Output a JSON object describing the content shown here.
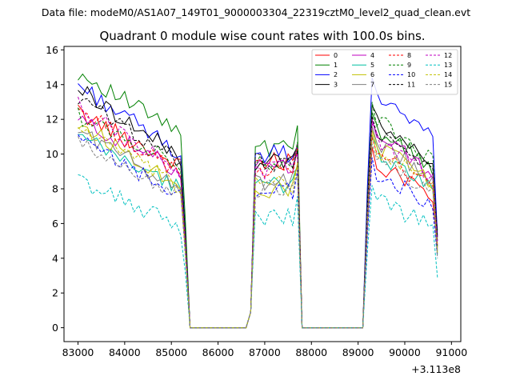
{
  "figure": {
    "suptitle": "Data file: modeM0/AS1A07_149T01_9000003304_22319cztM0_level2_quad_clean.evt"
  },
  "chart_data": {
    "type": "line",
    "title": "Quadrant 0 module wise count rates with 100.0s bins.",
    "xlabel": "",
    "ylabel": "",
    "x_offset_label": "+3.113e8",
    "xlim": [
      82700,
      91200
    ],
    "ylim": [
      -0.8,
      16.2
    ],
    "xticks": [
      83000,
      84000,
      85000,
      86000,
      87000,
      88000,
      89000,
      90000,
      91000
    ],
    "xtick_labels": [
      "83000",
      "84000",
      "85000",
      "86000",
      "87000",
      "88000",
      "89000",
      "90000",
      "91000"
    ],
    "yticks": [
      0,
      2,
      4,
      6,
      8,
      10,
      12,
      14,
      16
    ],
    "ytick_labels": [
      "0",
      "2",
      "4",
      "6",
      "8",
      "10",
      "12",
      "14",
      "16"
    ],
    "legend_position": "top-right",
    "segments": [
      {
        "start": 83000,
        "end": 85400,
        "bins": 25
      },
      {
        "start": 85500,
        "end": 86600,
        "gap": true
      },
      {
        "start": 86700,
        "end": 87800,
        "bins": 12
      },
      {
        "start": 87900,
        "end": 89100,
        "gap": true
      },
      {
        "start": 89200,
        "end": 90700,
        "bins": 16
      }
    ],
    "series": [
      {
        "name": "0",
        "color": "#ff0000",
        "dash": false,
        "levels": [
          12.4,
          9.3,
          9.6,
          9.6,
          4.7
        ]
      },
      {
        "name": "1",
        "color": "#008000",
        "dash": false,
        "levels": [
          14.7,
          11.2,
          10.4,
          11.6,
          5.6
        ]
      },
      {
        "name": "2",
        "color": "#0000ff",
        "dash": false,
        "levels": [
          14.0,
          10.0,
          10.0,
          13.6,
          5.3
        ]
      },
      {
        "name": "3",
        "color": "#000000",
        "dash": false,
        "levels": [
          13.8,
          9.8,
          9.6,
          12.0,
          5.2
        ]
      },
      {
        "name": "4",
        "color": "#c000c0",
        "dash": false,
        "levels": [
          12.0,
          9.0,
          9.2,
          11.2,
          4.6
        ]
      },
      {
        "name": "5",
        "color": "#00c0a0",
        "dash": false,
        "levels": [
          11.0,
          8.0,
          8.2,
          10.2,
          4.2
        ]
      },
      {
        "name": "6",
        "color": "#c0c000",
        "dash": false,
        "levels": [
          11.8,
          8.2,
          8.0,
          10.6,
          4.5
        ]
      },
      {
        "name": "7",
        "color": "#808080",
        "dash": false,
        "levels": [
          11.4,
          8.0,
          8.4,
          10.8,
          4.4
        ]
      },
      {
        "name": "8",
        "color": "#ff0000",
        "dash": true,
        "levels": [
          12.6,
          8.8,
          9.0,
          10.2,
          4.7
        ]
      },
      {
        "name": "9",
        "color": "#008000",
        "dash": true,
        "levels": [
          12.2,
          9.4,
          9.4,
          12.2,
          4.6
        ]
      },
      {
        "name": "10",
        "color": "#0000ff",
        "dash": true,
        "levels": [
          10.8,
          7.6,
          7.8,
          9.0,
          4.1
        ]
      },
      {
        "name": "11",
        "color": "#000000",
        "dash": true,
        "levels": [
          13.2,
          9.6,
          9.5,
          11.4,
          5.0
        ]
      },
      {
        "name": "12",
        "color": "#c000c0",
        "dash": true,
        "levels": [
          12.8,
          9.0,
          9.1,
          11.0,
          4.8
        ]
      },
      {
        "name": "13",
        "color": "#00c0c0",
        "dash": true,
        "levels": [
          8.5,
          5.8,
          6.3,
          7.4,
          2.9
        ]
      },
      {
        "name": "14",
        "color": "#c0c000",
        "dash": true,
        "levels": [
          11.6,
          8.0,
          8.3,
          10.4,
          4.3
        ]
      },
      {
        "name": "15",
        "color": "#808080",
        "dash": true,
        "levels": [
          10.6,
          7.6,
          8.0,
          9.8,
          4.0
        ]
      }
    ]
  }
}
